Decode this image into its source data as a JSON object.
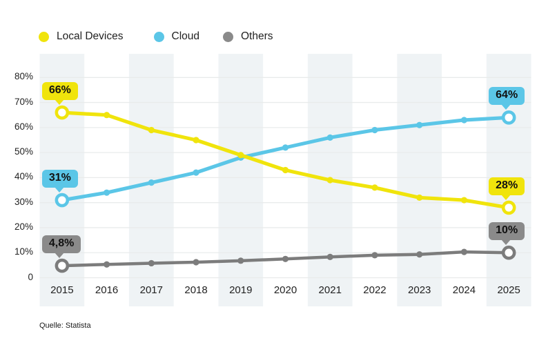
{
  "legend": {
    "items": [
      {
        "label": "Local Devices",
        "color": "#F0E40C"
      },
      {
        "label": "Cloud",
        "color": "#5BC6E7"
      },
      {
        "label": "Others",
        "color": "#8A8A8A"
      }
    ]
  },
  "source": {
    "text": "Quelle: Statista"
  },
  "chart_data": {
    "type": "line",
    "x": [
      "2015",
      "2016",
      "2017",
      "2018",
      "2019",
      "2020",
      "2021",
      "2022",
      "2023",
      "2024",
      "2025"
    ],
    "series": [
      {
        "name": "Local Devices",
        "color": "#F0E40C",
        "bubble_color": "#F0E40C",
        "values": [
          66,
          65,
          59,
          55,
          49,
          43,
          39,
          36,
          32,
          31,
          28
        ],
        "start_label": "66%",
        "end_label": "28%"
      },
      {
        "name": "Cloud",
        "color": "#5BC6E7",
        "bubble_color": "#5BC6E7",
        "values": [
          31,
          34,
          38,
          42,
          48,
          52,
          56,
          59,
          61,
          63,
          64
        ],
        "start_label": "31%",
        "end_label": "64%"
      },
      {
        "name": "Others",
        "color": "#7C7C7C",
        "bubble_color": "#8A8A8A",
        "values": [
          4.8,
          5.3,
          5.8,
          6.2,
          6.8,
          7.5,
          8.3,
          9,
          9.3,
          10.3,
          10
        ],
        "start_label": "4,8%",
        "end_label": "10%"
      }
    ],
    "yticks": [
      {
        "value": 80,
        "label": "80%"
      },
      {
        "value": 70,
        "label": "70%"
      },
      {
        "value": 60,
        "label": "60%"
      },
      {
        "value": 50,
        "label": "50%"
      },
      {
        "value": 40,
        "label": "40%"
      },
      {
        "value": 30,
        "label": "30%"
      },
      {
        "value": 20,
        "label": "20%"
      },
      {
        "value": 10,
        "label": "10%"
      },
      {
        "value": 0,
        "label": "0"
      }
    ],
    "ylim": [
      0,
      89
    ],
    "grid": true,
    "legend_position": "top-left",
    "background_stripes": "alternating vertical bands on odd years",
    "stripe_color": "#EFF3F5",
    "grid_color": "#E9EBEB"
  }
}
